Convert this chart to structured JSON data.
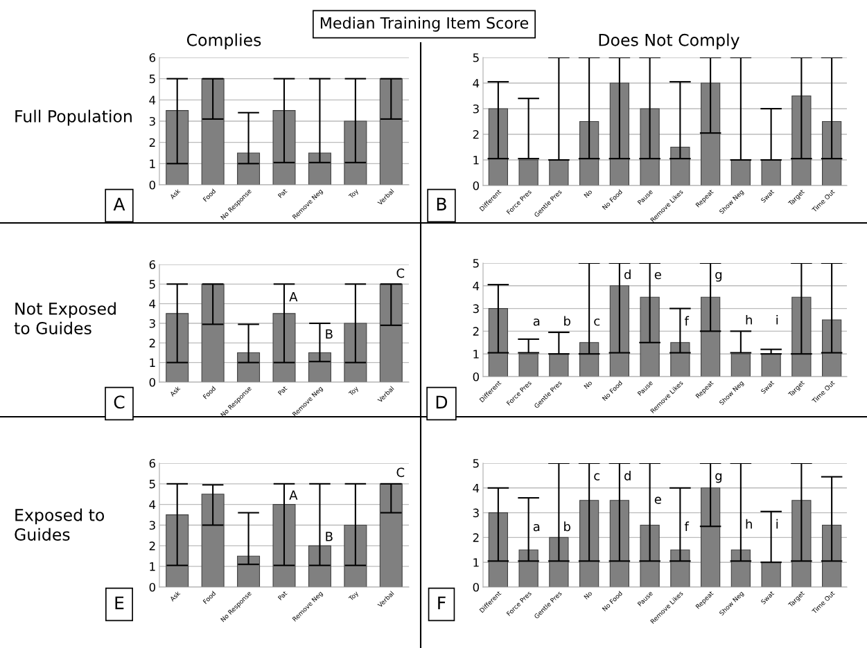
{
  "chart_data": [
    {
      "type": "bar",
      "title": "Complies",
      "categories": [
        "Ask",
        "Food",
        "No Response",
        "Pat",
        "Remove Neg",
        "Toy",
        "Verbal"
      ],
      "color": "#808080",
      "ylim": [
        0,
        6
      ],
      "yticks": [
        0,
        1,
        2,
        3,
        4,
        5,
        6
      ],
      "grid": "y",
      "values": [
        3.5,
        5,
        1.5,
        3.5,
        1.5,
        3,
        5
      ],
      "errors": [
        [
          1,
          5
        ],
        [
          3.1,
          5
        ],
        [
          1,
          3.4
        ],
        [
          1.05,
          5
        ],
        [
          1.05,
          5
        ],
        [
          1.05,
          5
        ],
        [
          3.1,
          5
        ]
      ],
      "annotations": [
        "Median Training Item Score",
        "Full Population",
        "A"
      ]
    },
    {
      "type": "bar",
      "title": "Does Not Comply",
      "categories": [
        "Different",
        "Force Pres",
        "Gentle Pres",
        "No",
        "No Food",
        "Pause",
        "Remove Likes",
        "Repeat",
        "Show Neg",
        "Swat",
        "Target",
        "Time Out"
      ],
      "color": "#808080",
      "ylim": [
        0,
        5
      ],
      "yticks": [
        0,
        1,
        2,
        3,
        4,
        5
      ],
      "grid": "y",
      "values": [
        3,
        1,
        1,
        2.5,
        4,
        3,
        1.5,
        4,
        1,
        1,
        3.5,
        2.5
      ],
      "errors": [
        [
          1.05,
          4.05
        ],
        [
          1.05,
          3.4
        ],
        [
          1,
          5
        ],
        [
          1.05,
          5
        ],
        [
          1.05,
          5
        ],
        [
          1.05,
          5
        ],
        [
          1.05,
          4.05
        ],
        [
          2.05,
          5
        ],
        [
          1,
          5
        ],
        [
          1,
          3
        ],
        [
          1.05,
          5
        ],
        [
          1.05,
          5
        ]
      ],
      "annotations": [
        "B"
      ]
    },
    {
      "type": "bar",
      "categories": [
        "Ask",
        "Food",
        "No Response",
        "Pat",
        "Remove Neg",
        "Toy",
        "Verbal"
      ],
      "color": "#808080",
      "ylim": [
        0,
        6
      ],
      "yticks": [
        0,
        1,
        2,
        3,
        4,
        5,
        6
      ],
      "grid": "y",
      "values": [
        3.5,
        5,
        1.5,
        3.5,
        1.5,
        3,
        5
      ],
      "errors": [
        [
          1,
          5
        ],
        [
          2.95,
          5
        ],
        [
          1,
          2.95
        ],
        [
          1,
          5
        ],
        [
          1.05,
          3
        ],
        [
          1,
          5
        ],
        [
          2.9,
          5
        ]
      ],
      "annotations": [
        "Not Exposed\nto Guides",
        "C",
        "A",
        "B",
        "C"
      ]
    },
    {
      "type": "bar",
      "categories": [
        "Different",
        "Force Pres",
        "Gentle Pres",
        "No",
        "No Food",
        "Pause",
        "Remove Likes",
        "Repeat",
        "Show Neg",
        "Swat",
        "Target",
        "Time Out"
      ],
      "color": "#808080",
      "ylim": [
        0,
        5
      ],
      "yticks": [
        0,
        1,
        2,
        3,
        4,
        5
      ],
      "grid": "y",
      "values": [
        3,
        1,
        1,
        1.5,
        4,
        3.5,
        1.5,
        3.5,
        1,
        1,
        3.5,
        2.5
      ],
      "errors": [
        [
          1.05,
          4.05
        ],
        [
          1.05,
          1.65
        ],
        [
          1,
          1.95
        ],
        [
          1,
          5
        ],
        [
          1.05,
          5
        ],
        [
          1.5,
          5
        ],
        [
          1.05,
          3
        ],
        [
          2,
          5
        ],
        [
          1.05,
          2
        ],
        [
          1,
          1.2
        ],
        [
          1,
          5
        ],
        [
          1.05,
          5
        ]
      ],
      "annotations": [
        "D",
        "a",
        "b",
        "c",
        "d",
        "e",
        "f",
        "g",
        "h",
        "i"
      ]
    },
    {
      "type": "bar",
      "categories": [
        "Ask",
        "Food",
        "No Response",
        "Pat",
        "Remove Neg",
        "Toy",
        "Verbal"
      ],
      "color": "#808080",
      "ylim": [
        0,
        6
      ],
      "yticks": [
        0,
        1,
        2,
        3,
        4,
        5,
        6
      ],
      "grid": "y",
      "values": [
        3.5,
        4.5,
        1.5,
        4,
        2,
        3,
        5
      ],
      "errors": [
        [
          1.05,
          5
        ],
        [
          3,
          4.95
        ],
        [
          1.1,
          3.6
        ],
        [
          1.05,
          5
        ],
        [
          1.05,
          5
        ],
        [
          1.05,
          5
        ],
        [
          3.6,
          5
        ]
      ],
      "annotations": [
        "Exposed to\nGuides",
        "E",
        "A",
        "B",
        "C"
      ]
    },
    {
      "type": "bar",
      "categories": [
        "Different",
        "Force Pres",
        "Gentle Pres",
        "No",
        "No Food",
        "Pause",
        "Remove Likes",
        "Repeat",
        "Show Neg",
        "Swat",
        "Target",
        "Time Out"
      ],
      "color": "#808080",
      "ylim": [
        0,
        5
      ],
      "yticks": [
        0,
        1,
        2,
        3,
        4,
        5
      ],
      "grid": "y",
      "values": [
        3,
        1.5,
        2,
        3.5,
        3.5,
        2.5,
        1.5,
        4,
        1.5,
        1,
        3.5,
        2.5
      ],
      "errors": [
        [
          1.05,
          4
        ],
        [
          1.05,
          3.6
        ],
        [
          1.05,
          5
        ],
        [
          1.05,
          5
        ],
        [
          1.05,
          5
        ],
        [
          1.05,
          5
        ],
        [
          1.05,
          4
        ],
        [
          2.45,
          5
        ],
        [
          1.05,
          5
        ],
        [
          1,
          3.05
        ],
        [
          1.05,
          5
        ],
        [
          1.05,
          4.45
        ]
      ],
      "annotations": [
        "F",
        "a",
        "b",
        "c",
        "d",
        "e",
        "f",
        "g",
        "h",
        "i"
      ]
    }
  ]
}
